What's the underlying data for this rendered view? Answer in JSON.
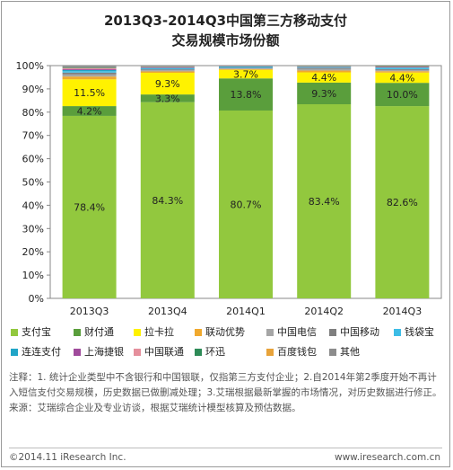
{
  "title_lines": [
    "2013Q3-2014Q3中国第三方移动支付",
    "交易规模市场份额"
  ],
  "chart_data": {
    "type": "bar",
    "stacked": true,
    "percent": true,
    "categories": [
      "2013Q3",
      "2013Q4",
      "2014Q1",
      "2014Q2",
      "2014Q3"
    ],
    "yticks": [
      "0%",
      "10%",
      "20%",
      "30%",
      "40%",
      "50%",
      "60%",
      "70%",
      "80%",
      "90%",
      "100%"
    ],
    "ylim": [
      0,
      100
    ],
    "grid": false,
    "legend_position": "bottom",
    "series": [
      {
        "name": "支付宝",
        "color": "#92C83E",
        "values": [
          78.4,
          84.3,
          80.7,
          83.4,
          82.6
        ],
        "labels": [
          "78.4%",
          "84.3%",
          "80.7%",
          "83.4%",
          "82.6%"
        ]
      },
      {
        "name": "财付通",
        "color": "#5A9E3C",
        "values": [
          4.2,
          3.3,
          13.8,
          9.3,
          10.0
        ],
        "labels": [
          "4.2%",
          "3.3%",
          "13.8%",
          "9.3%",
          "10.0%"
        ]
      },
      {
        "name": "拉卡拉",
        "color": "#FFF200",
        "values": [
          11.5,
          9.3,
          3.7,
          4.4,
          4.4
        ],
        "labels": [
          "11.5%",
          "9.3%",
          "3.7%",
          "4.4%",
          "4.4%"
        ]
      },
      {
        "name": "联动优势",
        "color": "#F0A92E",
        "values": [
          1.2,
          0.6,
          0.3,
          0.8,
          0.6
        ],
        "labels": []
      },
      {
        "name": "中国电信",
        "color": "#A6A6A6",
        "values": [
          0.9,
          0.5,
          0.3,
          0.7,
          0.5
        ],
        "labels": []
      },
      {
        "name": "中国移动",
        "color": "#7F7F7F",
        "values": [
          0.8,
          0.4,
          0.3,
          0.5,
          0.4
        ],
        "labels": []
      },
      {
        "name": "钱袋宝",
        "color": "#3DBDE6",
        "values": [
          0.6,
          0.3,
          0.3,
          0.2,
          0.4
        ],
        "labels": []
      },
      {
        "name": "连连支付",
        "color": "#21A5C7",
        "values": [
          0.5,
          0.3,
          0.2,
          0.2,
          0.3
        ],
        "labels": []
      },
      {
        "name": "上海捷银",
        "color": "#A04B9C",
        "values": [
          0.4,
          0.2,
          0.1,
          0.1,
          0.2
        ],
        "labels": []
      },
      {
        "name": "中国联通",
        "color": "#E58F9C",
        "values": [
          0.5,
          0.3,
          0.1,
          0.1,
          0.2
        ],
        "labels": []
      },
      {
        "name": "环迅",
        "color": "#2E8B57",
        "values": [
          0.3,
          0.2,
          0.1,
          0.1,
          0.2
        ],
        "labels": []
      },
      {
        "name": "百度钱包",
        "color": "#E8A33A",
        "values": [
          0.0,
          0.0,
          0.0,
          0.1,
          0.1
        ],
        "labels": []
      },
      {
        "name": "其他",
        "color": "#8C8C8C",
        "values": [
          0.7,
          0.3,
          0.1,
          0.1,
          0.1
        ],
        "labels": []
      }
    ]
  },
  "notes": [
    "注释：1. 统计企业类型中不含银行和中国银联，仅指第三方支付企业；2.自2014年第2季度开始不再计入短信支付交易规模，历史数据已做删减处理；3.艾瑞根据最新掌握的市场情况，对历史数据进行修正。",
    "来源：艾瑞综合企业及专业访谈，根据艾瑞统计模型核算及预估数据。"
  ],
  "footer": {
    "left": "©2014.11 iResearch Inc.",
    "right": "www.iresearch.com.cn"
  }
}
